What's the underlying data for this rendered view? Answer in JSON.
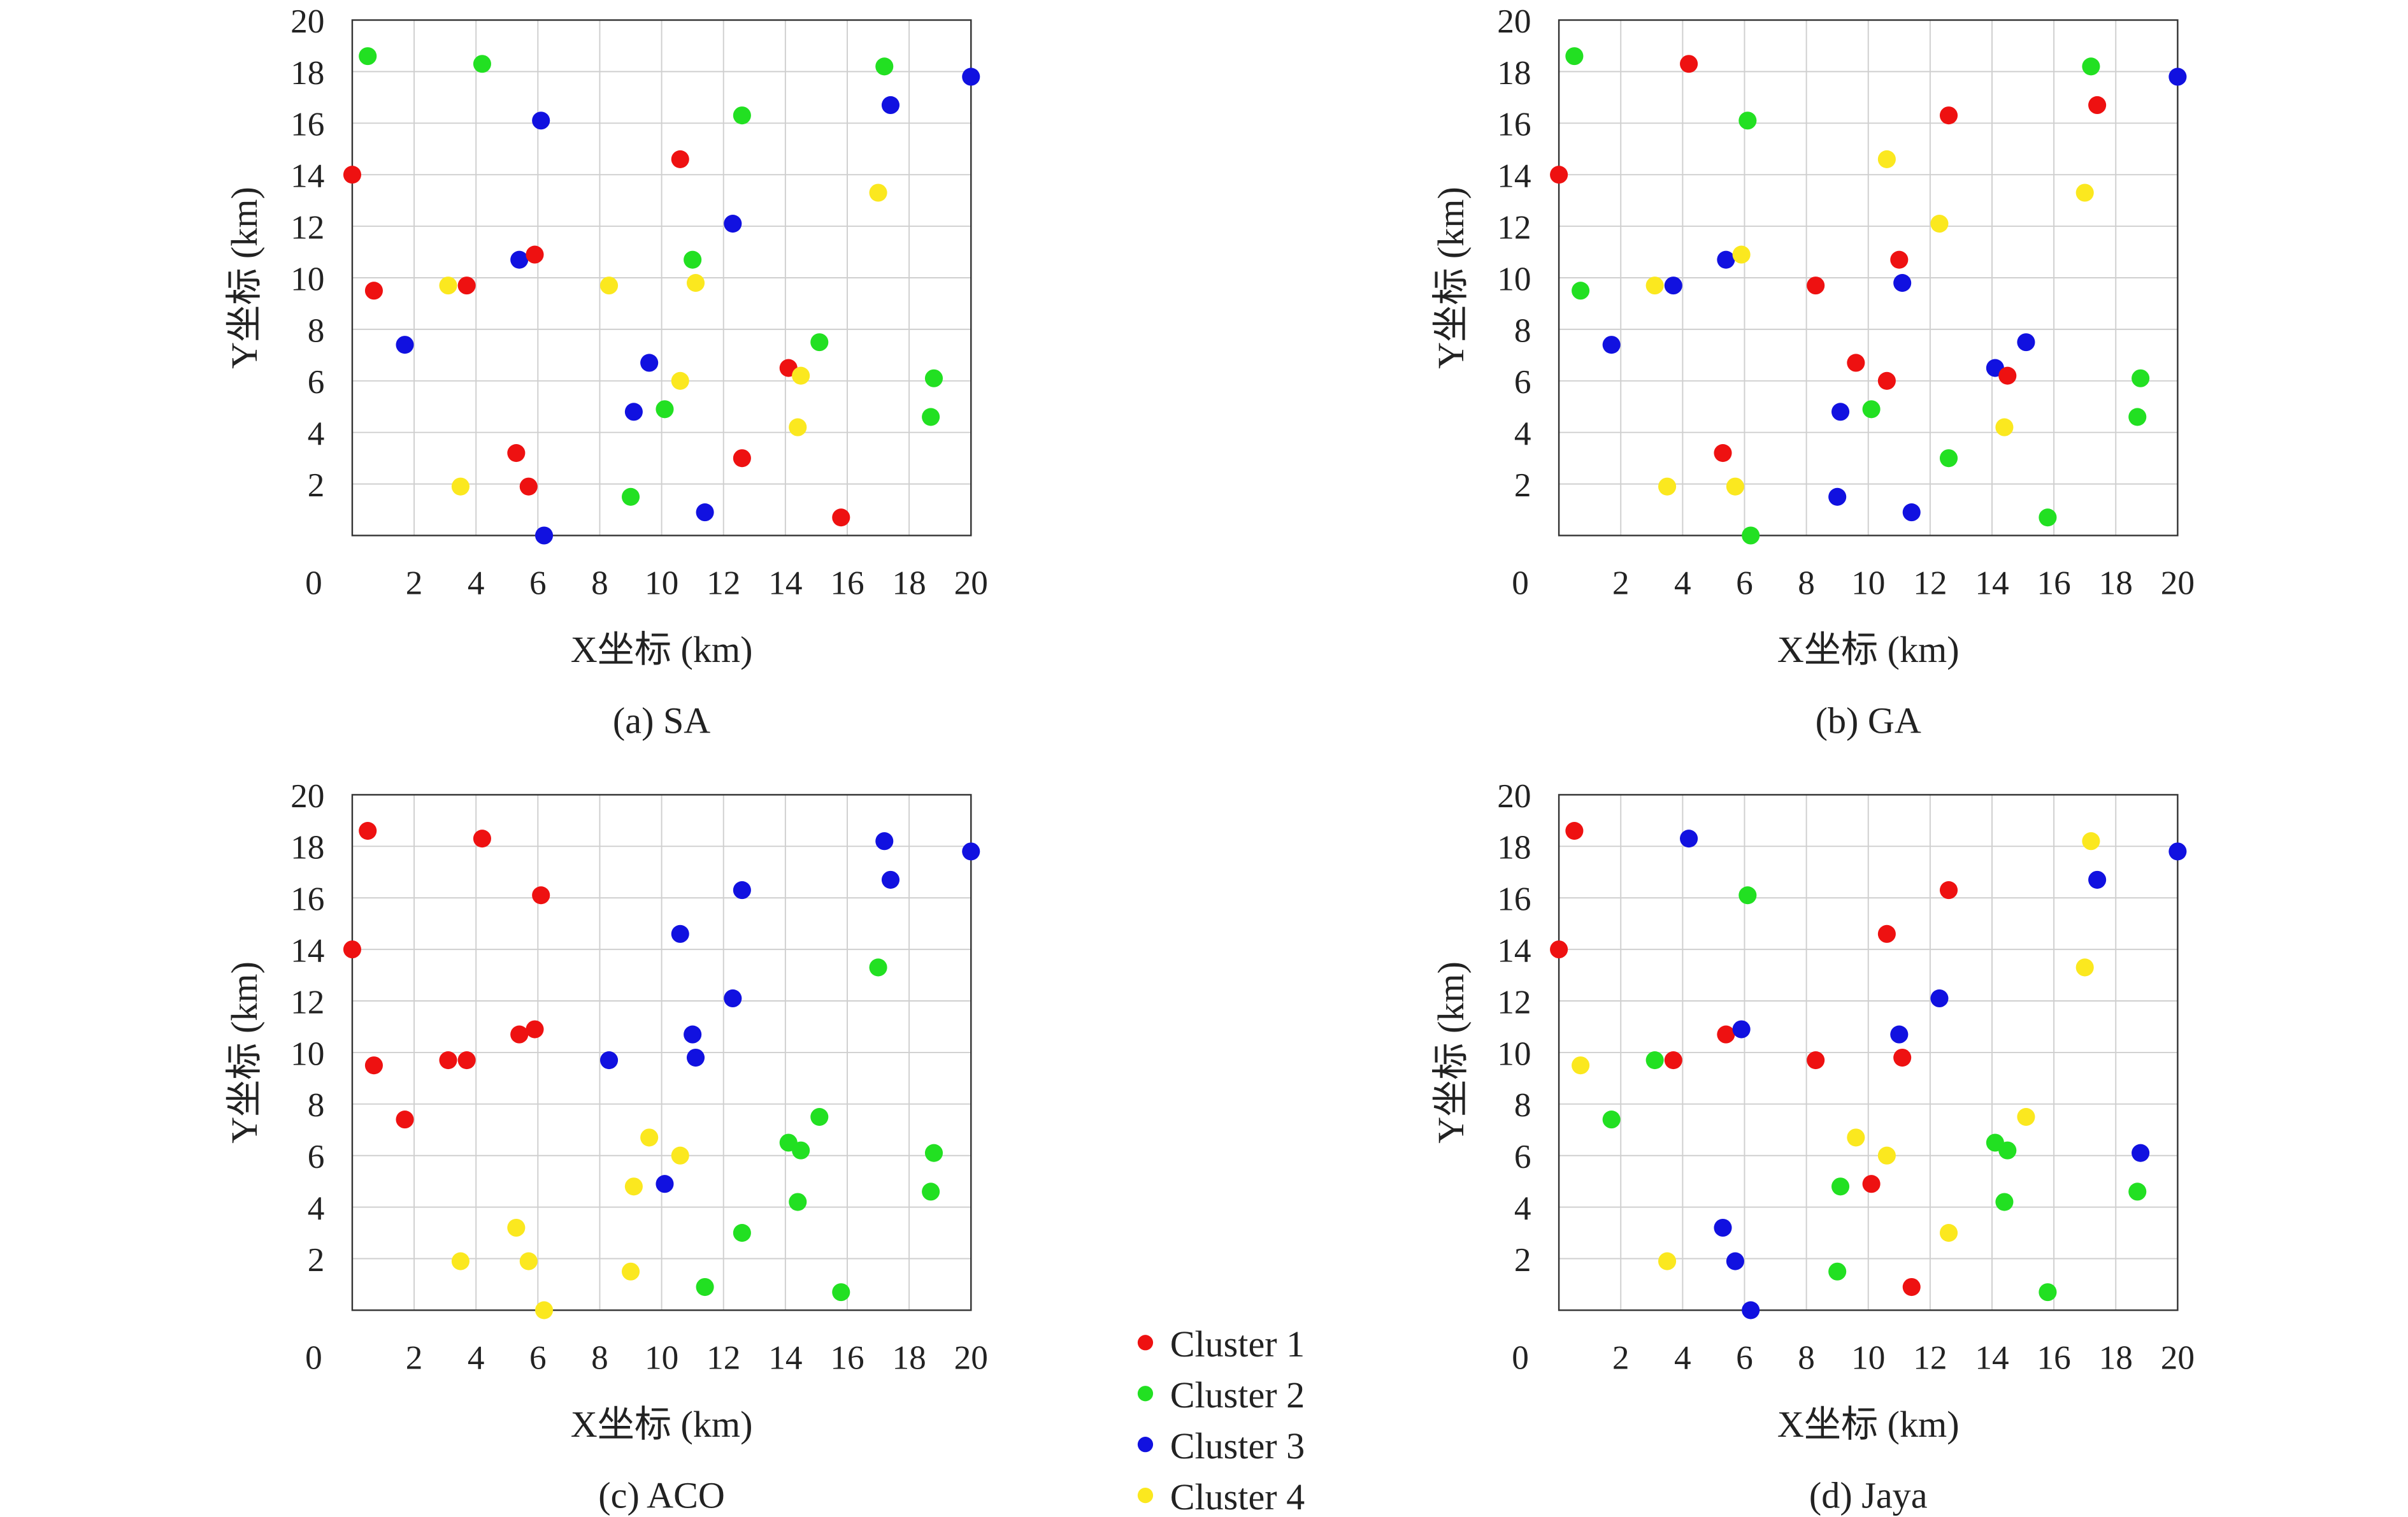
{
  "legend": {
    "placement": "bottom-center",
    "entries": [
      {
        "label": "Cluster 1",
        "color": "#ee1111"
      },
      {
        "label": "Cluster 2",
        "color": "#22e022"
      },
      {
        "label": "Cluster 3",
        "color": "#1111e0"
      },
      {
        "label": "Cluster 4",
        "color": "#fbe81f"
      }
    ]
  },
  "chart_data": [
    {
      "type": "scatter",
      "caption": "(a) SA",
      "xlabel": "X坐标 (km)",
      "ylabel": "Y坐标 (km)",
      "xlim": [
        0,
        20
      ],
      "ylim": [
        0,
        20
      ],
      "grid": true,
      "xticks": [
        "2",
        "4",
        "6",
        "8",
        "10",
        "12",
        "14",
        "16",
        "18",
        "20"
      ],
      "yticks": [
        "2",
        "4",
        "6",
        "8",
        "10",
        "12",
        "14",
        "16",
        "18",
        "20"
      ],
      "origin_label": "0",
      "points_format": [
        "x",
        "y",
        "cluster"
      ],
      "points": [
        [
          0,
          14,
          1
        ],
        [
          0.5,
          18.6,
          2
        ],
        [
          0.7,
          9.5,
          1
        ],
        [
          1.7,
          7.4,
          3
        ],
        [
          3.1,
          9.7,
          4
        ],
        [
          3.7,
          9.7,
          1
        ],
        [
          3.5,
          1.9,
          4
        ],
        [
          4.2,
          18.3,
          2
        ],
        [
          5.4,
          10.7,
          3
        ],
        [
          5.9,
          10.9,
          1
        ],
        [
          6.1,
          16.1,
          3
        ],
        [
          5.3,
          3.2,
          1
        ],
        [
          5.7,
          1.9,
          1
        ],
        [
          6.2,
          0,
          3
        ],
        [
          8.3,
          9.7,
          4
        ],
        [
          9.1,
          4.8,
          3
        ],
        [
          9.6,
          6.7,
          3
        ],
        [
          10.1,
          4.9,
          2
        ],
        [
          9,
          1.5,
          2
        ],
        [
          10.6,
          14.6,
          1
        ],
        [
          10.6,
          6.0,
          4
        ],
        [
          11,
          10.7,
          2
        ],
        [
          11.1,
          9.8,
          4
        ],
        [
          11.4,
          0.9,
          3
        ],
        [
          12.3,
          12.1,
          3
        ],
        [
          12.6,
          16.3,
          2
        ],
        [
          12.6,
          3.0,
          1
        ],
        [
          14.1,
          6.5,
          1
        ],
        [
          14.5,
          6.2,
          4
        ],
        [
          14.4,
          4.2,
          4
        ],
        [
          15.1,
          7.5,
          2
        ],
        [
          15.8,
          0.7,
          1
        ],
        [
          17,
          13.3,
          4
        ],
        [
          17.2,
          18.2,
          2
        ],
        [
          17.4,
          16.7,
          3
        ],
        [
          18.7,
          4.6,
          2
        ],
        [
          18.8,
          6.1,
          2
        ],
        [
          20,
          17.8,
          3
        ]
      ]
    },
    {
      "type": "scatter",
      "caption": "(b) GA",
      "xlabel": "X坐标 (km)",
      "ylabel": "Y坐标 (km)",
      "xlim": [
        0,
        20
      ],
      "ylim": [
        0,
        20
      ],
      "grid": true,
      "xticks": [
        "2",
        "4",
        "6",
        "8",
        "10",
        "12",
        "14",
        "16",
        "18",
        "20"
      ],
      "yticks": [
        "2",
        "4",
        "6",
        "8",
        "10",
        "12",
        "14",
        "16",
        "18",
        "20"
      ],
      "origin_label": "0",
      "points_format": [
        "x",
        "y",
        "cluster"
      ],
      "points": [
        [
          0,
          14,
          1
        ],
        [
          0.5,
          18.6,
          2
        ],
        [
          0.7,
          9.5,
          2
        ],
        [
          1.7,
          7.4,
          3
        ],
        [
          3.1,
          9.7,
          4
        ],
        [
          3.7,
          9.7,
          3
        ],
        [
          3.5,
          1.9,
          4
        ],
        [
          4.2,
          18.3,
          1
        ],
        [
          5.4,
          10.7,
          3
        ],
        [
          5.9,
          10.9,
          4
        ],
        [
          6.1,
          16.1,
          2
        ],
        [
          5.3,
          3.2,
          1
        ],
        [
          5.7,
          1.9,
          4
        ],
        [
          6.2,
          0,
          2
        ],
        [
          8.3,
          9.7,
          1
        ],
        [
          9.1,
          4.8,
          3
        ],
        [
          9.6,
          6.7,
          1
        ],
        [
          10.1,
          4.9,
          2
        ],
        [
          9,
          1.5,
          3
        ],
        [
          10.6,
          14.6,
          4
        ],
        [
          10.6,
          6.0,
          1
        ],
        [
          11,
          10.7,
          1
        ],
        [
          11.1,
          9.8,
          3
        ],
        [
          11.4,
          0.9,
          3
        ],
        [
          12.3,
          12.1,
          4
        ],
        [
          12.6,
          16.3,
          1
        ],
        [
          12.6,
          3.0,
          2
        ],
        [
          14.1,
          6.5,
          3
        ],
        [
          14.5,
          6.2,
          1
        ],
        [
          14.4,
          4.2,
          4
        ],
        [
          15.1,
          7.5,
          3
        ],
        [
          15.8,
          0.7,
          2
        ],
        [
          17,
          13.3,
          4
        ],
        [
          17.2,
          18.2,
          2
        ],
        [
          17.4,
          16.7,
          1
        ],
        [
          18.7,
          4.6,
          2
        ],
        [
          18.8,
          6.1,
          2
        ],
        [
          20,
          17.8,
          3
        ]
      ]
    },
    {
      "type": "scatter",
      "caption": "(c) ACO",
      "xlabel": "X坐标 (km)",
      "ylabel": "Y坐标 (km)",
      "xlim": [
        0,
        20
      ],
      "ylim": [
        0,
        20
      ],
      "grid": true,
      "xticks": [
        "2",
        "4",
        "6",
        "8",
        "10",
        "12",
        "14",
        "16",
        "18",
        "20"
      ],
      "yticks": [
        "2",
        "4",
        "6",
        "8",
        "10",
        "12",
        "14",
        "16",
        "18",
        "20"
      ],
      "origin_label": "0",
      "points_format": [
        "x",
        "y",
        "cluster"
      ],
      "points": [
        [
          0,
          14,
          1
        ],
        [
          0.5,
          18.6,
          1
        ],
        [
          0.7,
          9.5,
          1
        ],
        [
          1.7,
          7.4,
          1
        ],
        [
          3.1,
          9.7,
          1
        ],
        [
          3.7,
          9.7,
          1
        ],
        [
          3.5,
          1.9,
          4
        ],
        [
          4.2,
          18.3,
          1
        ],
        [
          5.4,
          10.7,
          1
        ],
        [
          5.9,
          10.9,
          1
        ],
        [
          6.1,
          16.1,
          1
        ],
        [
          5.3,
          3.2,
          4
        ],
        [
          5.7,
          1.9,
          4
        ],
        [
          6.2,
          0,
          4
        ],
        [
          8.3,
          9.7,
          3
        ],
        [
          9.1,
          4.8,
          4
        ],
        [
          9.6,
          6.7,
          4
        ],
        [
          10.1,
          4.9,
          3
        ],
        [
          9,
          1.5,
          4
        ],
        [
          10.6,
          14.6,
          3
        ],
        [
          10.6,
          6.0,
          4
        ],
        [
          11,
          10.7,
          3
        ],
        [
          11.1,
          9.8,
          3
        ],
        [
          11.4,
          0.9,
          2
        ],
        [
          12.3,
          12.1,
          3
        ],
        [
          12.6,
          16.3,
          3
        ],
        [
          12.6,
          3.0,
          2
        ],
        [
          14.1,
          6.5,
          2
        ],
        [
          14.5,
          6.2,
          2
        ],
        [
          14.4,
          4.2,
          2
        ],
        [
          15.1,
          7.5,
          2
        ],
        [
          15.8,
          0.7,
          2
        ],
        [
          17,
          13.3,
          2
        ],
        [
          17.2,
          18.2,
          3
        ],
        [
          17.4,
          16.7,
          3
        ],
        [
          18.7,
          4.6,
          2
        ],
        [
          18.8,
          6.1,
          2
        ],
        [
          20,
          17.8,
          3
        ]
      ]
    },
    {
      "type": "scatter",
      "caption": "(d) Jaya",
      "xlabel": "X坐标 (km)",
      "ylabel": "Y坐标 (km)",
      "xlim": [
        0,
        20
      ],
      "ylim": [
        0,
        20
      ],
      "grid": true,
      "xticks": [
        "2",
        "4",
        "6",
        "8",
        "10",
        "12",
        "14",
        "16",
        "18",
        "20"
      ],
      "yticks": [
        "2",
        "4",
        "6",
        "8",
        "10",
        "12",
        "14",
        "16",
        "18",
        "20"
      ],
      "origin_label": "0",
      "points_format": [
        "x",
        "y",
        "cluster"
      ],
      "points": [
        [
          0,
          14,
          1
        ],
        [
          0.5,
          18.6,
          1
        ],
        [
          0.7,
          9.5,
          4
        ],
        [
          1.7,
          7.4,
          2
        ],
        [
          3.1,
          9.7,
          2
        ],
        [
          3.7,
          9.7,
          1
        ],
        [
          3.5,
          1.9,
          4
        ],
        [
          4.2,
          18.3,
          3
        ],
        [
          5.4,
          10.7,
          1
        ],
        [
          5.9,
          10.9,
          3
        ],
        [
          6.1,
          16.1,
          2
        ],
        [
          5.3,
          3.2,
          3
        ],
        [
          5.7,
          1.9,
          3
        ],
        [
          6.2,
          0,
          3
        ],
        [
          8.3,
          9.7,
          1
        ],
        [
          9.1,
          4.8,
          2
        ],
        [
          9.6,
          6.7,
          4
        ],
        [
          10.1,
          4.9,
          1
        ],
        [
          9,
          1.5,
          2
        ],
        [
          10.6,
          14.6,
          1
        ],
        [
          10.6,
          6.0,
          4
        ],
        [
          11,
          10.7,
          3
        ],
        [
          11.1,
          9.8,
          1
        ],
        [
          11.4,
          0.9,
          1
        ],
        [
          12.3,
          12.1,
          3
        ],
        [
          12.6,
          16.3,
          1
        ],
        [
          12.6,
          3.0,
          4
        ],
        [
          14.1,
          6.5,
          2
        ],
        [
          14.5,
          6.2,
          2
        ],
        [
          14.4,
          4.2,
          2
        ],
        [
          15.1,
          7.5,
          4
        ],
        [
          15.8,
          0.7,
          2
        ],
        [
          17,
          13.3,
          4
        ],
        [
          17.2,
          18.2,
          4
        ],
        [
          17.4,
          16.7,
          3
        ],
        [
          18.7,
          4.6,
          2
        ],
        [
          18.8,
          6.1,
          3
        ],
        [
          20,
          17.8,
          3
        ]
      ]
    }
  ]
}
